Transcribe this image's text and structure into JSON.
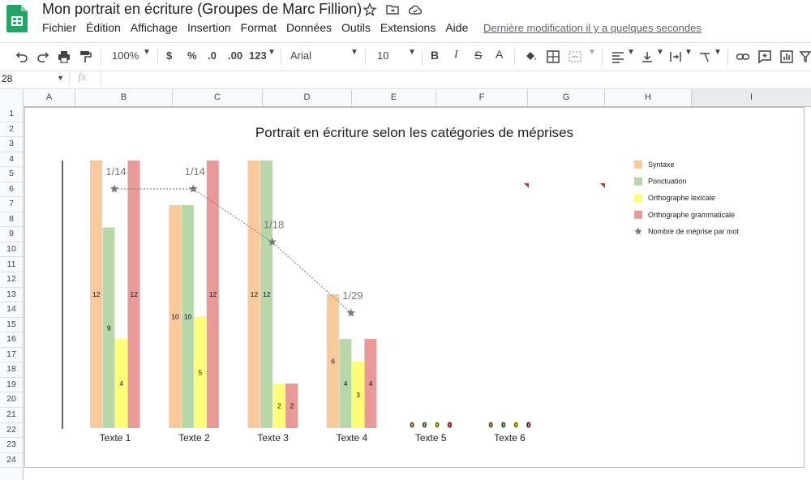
{
  "app": {
    "title": "Mon portrait en écriture (Groupes de Marc Fillion)",
    "menu": [
      "Fichier",
      "Édition",
      "Affichage",
      "Insertion",
      "Format",
      "Données",
      "Outils",
      "Extensions",
      "Aide"
    ],
    "last_modified": "Dernière modification il y a quelques secondes"
  },
  "toolbar": {
    "zoom": "100%",
    "currency": "$",
    "percent": "%",
    "dec_less": ".0",
    "dec_more": ".00",
    "format_more": "123",
    "font": "Arial",
    "font_size": "10",
    "bold": "B",
    "italic": "I",
    "strike": "S",
    "text_color": "A"
  },
  "formula_bar": {
    "cell_ref": "28",
    "fx": "fx"
  },
  "grid": {
    "columns": [
      "A",
      "B",
      "C",
      "D",
      "E",
      "F",
      "G",
      "H",
      "I"
    ],
    "rows": [
      "1",
      "2",
      "3",
      "4",
      "5",
      "6",
      "7",
      "8",
      "9",
      "10",
      "11",
      "12",
      "13",
      "14",
      "15",
      "16",
      "17",
      "18",
      "19",
      "20",
      "21",
      "22",
      "23",
      "24"
    ]
  },
  "colors": {
    "syntaxe": "#f9c89b",
    "ponctuation": "#b7d7a8",
    "orthographe_lexicale": "#fdfd77",
    "orthographe_grammaticale": "#ea9999",
    "marker": "#777777"
  },
  "chart_data": {
    "type": "bar",
    "title": "Portrait en écriture selon les catégories de méprises",
    "categories": [
      "Texte 1",
      "Texte 2",
      "Texte 3",
      "Texte 4",
      "Texte 5",
      "Texte 6"
    ],
    "series": [
      {
        "name": "Syntaxe",
        "values": [
          12,
          10,
          12,
          6,
          0,
          0
        ]
      },
      {
        "name": "Ponctuation",
        "values": [
          9,
          10,
          12,
          4,
          0,
          0
        ]
      },
      {
        "name": "Orthographe lexicale",
        "values": [
          4,
          5,
          2,
          3,
          0,
          0
        ]
      },
      {
        "name": "Orthographe grammaticale",
        "values": [
          12,
          12,
          2,
          4,
          0,
          0
        ]
      }
    ],
    "line_series": {
      "name": "Nombre de méprise par mot",
      "labels": [
        "1/14",
        "1/14",
        "1/18",
        "1/29"
      ],
      "values": [
        0.0714,
        0.0714,
        0.0556,
        0.0345
      ]
    },
    "ylim": [
      0,
      12
    ],
    "legend_position": "right"
  }
}
